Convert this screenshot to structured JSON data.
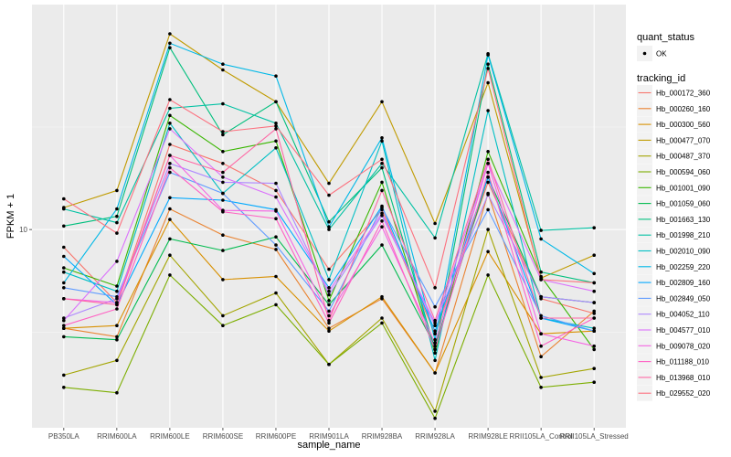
{
  "chart_data": {
    "type": "line",
    "title": "",
    "xlabel": "sample_name",
    "ylabel": "FPKM + 1",
    "y_scale": "log10",
    "ylim": [
      1.08,
      125
    ],
    "y_ticks": [
      10
    ],
    "y_tick_labels": [
      "10"
    ],
    "grid": true,
    "legend_position": "right",
    "categories": [
      "PB350LA",
      "RRIM600LA",
      "RRIM600LE",
      "RRIM600SE",
      "RRIM600PE",
      "RRIM901LA",
      "RRIM928BA",
      "RRIM928LA",
      "RRIM928LE",
      "RRII105LA_Control",
      "RRII105LA_Stressed"
    ],
    "point_legend": {
      "title": "quant_status",
      "entries": [
        "OK"
      ]
    },
    "legend_title": "tracking_id",
    "series": [
      {
        "name": "Hb_000172_360",
        "color": "#F8766D",
        "values": [
          8.2,
          4.4,
          26.0,
          21.0,
          15.5,
          6.4,
          12.5,
          3.1,
          17.0,
          4.6,
          3.9
        ]
      },
      {
        "name": "Hb_000260_160",
        "color": "#EA8331",
        "values": [
          3.3,
          3.0,
          12.6,
          9.4,
          8.0,
          3.3,
          4.6,
          2.0,
          15.0,
          2.4,
          4.0
        ]
      },
      {
        "name": "Hb_000300_560",
        "color": "#D89000",
        "values": [
          3.3,
          3.4,
          11.2,
          5.7,
          5.9,
          3.2,
          4.7,
          2.0,
          7.8,
          3.1,
          3.2
        ]
      },
      {
        "name": "Hb_000477_070",
        "color": "#C09B00",
        "values": [
          12.8,
          15.5,
          90.0,
          60.0,
          42.0,
          16.8,
          42.0,
          10.7,
          52.0,
          5.8,
          7.5
        ]
      },
      {
        "name": "Hb_000487_370",
        "color": "#A3A500",
        "values": [
          1.95,
          2.3,
          7.5,
          3.8,
          4.9,
          2.2,
          3.7,
          1.3,
          10.0,
          1.9,
          2.1
        ]
      },
      {
        "name": "Hb_000594_060",
        "color": "#7CAE00",
        "values": [
          1.7,
          1.6,
          6.0,
          3.4,
          4.3,
          2.2,
          3.5,
          1.2,
          6.0,
          1.7,
          1.8
        ]
      },
      {
        "name": "Hb_001001_090",
        "color": "#39B600",
        "values": [
          6.5,
          5.3,
          36.0,
          24.0,
          27.0,
          4.5,
          17.0,
          2.5,
          24.0,
          5.9,
          2.6
        ]
      },
      {
        "name": "Hb_001059_060",
        "color": "#00BB4E",
        "values": [
          3.0,
          2.9,
          9.0,
          7.9,
          9.2,
          4.3,
          8.4,
          2.7,
          18.0,
          4.7,
          4.4
        ]
      },
      {
        "name": "Hb_001663_130",
        "color": "#00BF7D",
        "values": [
          10.4,
          11.6,
          77.0,
          29.0,
          42.0,
          10.9,
          20.0,
          2.6,
          64.0,
          6.2,
          5.5
        ]
      },
      {
        "name": "Hb_001998_210",
        "color": "#00C1A3",
        "values": [
          12.6,
          10.8,
          39.0,
          41.0,
          33.0,
          10.0,
          21.0,
          9.1,
          72.0,
          9.9,
          10.2
        ]
      },
      {
        "name": "Hb_002010_090",
        "color": "#00BFC4",
        "values": [
          6.2,
          5.0,
          33.0,
          15.0,
          25.0,
          5.7,
          27.0,
          2.3,
          38.0,
          3.7,
          3.3
        ]
      },
      {
        "name": "Hb_002259_220",
        "color": "#00B8E7",
        "values": [
          5.5,
          12.6,
          81.0,
          64.0,
          56.0,
          10.3,
          28.0,
          2.9,
          71.0,
          9.0,
          6.1
        ]
      },
      {
        "name": "Hb_002809_160",
        "color": "#00A9FF",
        "values": [
          7.4,
          4.3,
          14.3,
          13.9,
          12.5,
          5.2,
          13.0,
          3.2,
          18.0,
          3.7,
          3.2
        ]
      },
      {
        "name": "Hb_002849_050",
        "color": "#619CFF",
        "values": [
          5.2,
          4.7,
          19.0,
          15.0,
          8.4,
          4.0,
          12.8,
          4.2,
          12.5,
          3.8,
          3.2
        ]
      },
      {
        "name": "Hb_004052_110",
        "color": "#AE87FF",
        "values": [
          3.7,
          4.6,
          21.0,
          17.0,
          16.8,
          4.8,
          11.7,
          3.5,
          14.8,
          4.7,
          4.4
        ]
      },
      {
        "name": "Hb_004577_010",
        "color": "#DB72FB",
        "values": [
          3.6,
          7.0,
          31.0,
          18.0,
          14.4,
          5.0,
          12.0,
          3.4,
          21.0,
          5.7,
          5.0
        ]
      },
      {
        "name": "Hb_009078_020",
        "color": "#F564E3",
        "values": [
          4.6,
          4.4,
          23.0,
          12.4,
          12.3,
          3.8,
          10.3,
          2.8,
          21.0,
          3.1,
          2.7
        ]
      },
      {
        "name": "Hb_011188_010",
        "color": "#FF61C3",
        "values": [
          3.4,
          4.1,
          20.0,
          12.2,
          11.3,
          3.5,
          11.0,
          2.6,
          19.0,
          2.7,
          3.7
        ]
      },
      {
        "name": "Hb_013968_010",
        "color": "#FF67A4",
        "values": [
          4.6,
          4.3,
          23.0,
          19.0,
          31.0,
          3.6,
          15.5,
          3.6,
          22.0,
          3.7,
          3.7
        ]
      },
      {
        "name": "Hb_029552_020",
        "color": "#FC717F",
        "values": [
          14.1,
          9.6,
          43.0,
          30.0,
          32.0,
          14.7,
          22.0,
          5.2,
          61.0,
          5.7,
          5.5
        ]
      }
    ]
  }
}
